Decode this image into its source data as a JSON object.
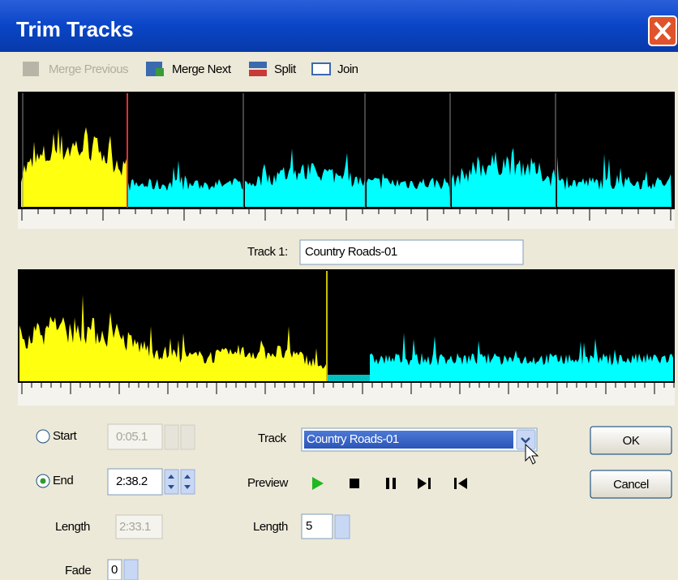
{
  "window": {
    "title": "Trim Tracks"
  },
  "toolbar": {
    "merge_previous": "Merge Previous",
    "merge_next": "Merge Next",
    "split": "Split",
    "join": "Join"
  },
  "track_name": {
    "label": "Track 1:",
    "value": "Country Roads-01"
  },
  "start": {
    "label": "Start",
    "value": "0:05.1"
  },
  "end": {
    "label": "End",
    "value": "2:38.2"
  },
  "length_time": {
    "label": "Length",
    "value": "2:33.1"
  },
  "fade": {
    "label": "Fade",
    "value": "0"
  },
  "track_select": {
    "label": "Track",
    "value": "Country Roads-01"
  },
  "preview": {
    "label": "Preview"
  },
  "preview_length": {
    "label": "Length",
    "value": "5"
  },
  "buttons": {
    "ok": "OK",
    "cancel": "Cancel"
  }
}
